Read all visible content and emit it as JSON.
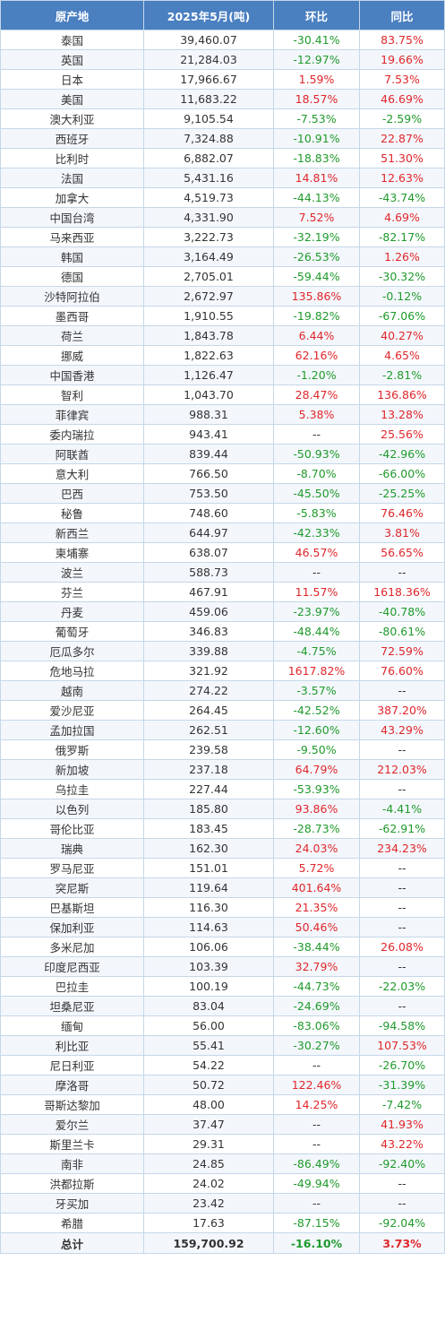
{
  "header": {
    "origin": "原产地",
    "volume": "2025年5月(吨)",
    "mom": "环比",
    "yoy": "同比"
  },
  "colors": {
    "positive": "#e0262a",
    "negative": "#1f9a2b",
    "header_bg": "#4a7fc0"
  },
  "rows": [
    {
      "origin": "泰国",
      "volume": "39,460.07",
      "mom": "-30.41%",
      "yoy": "83.75%"
    },
    {
      "origin": "英国",
      "volume": "21,284.03",
      "mom": "-12.97%",
      "yoy": "19.66%"
    },
    {
      "origin": "日本",
      "volume": "17,966.67",
      "mom": "1.59%",
      "yoy": "7.53%"
    },
    {
      "origin": "美国",
      "volume": "11,683.22",
      "mom": "18.57%",
      "yoy": "46.69%"
    },
    {
      "origin": "澳大利亚",
      "volume": "9,105.54",
      "mom": "-7.53%",
      "yoy": "-2.59%"
    },
    {
      "origin": "西班牙",
      "volume": "7,324.88",
      "mom": "-10.91%",
      "yoy": "22.87%"
    },
    {
      "origin": "比利时",
      "volume": "6,882.07",
      "mom": "-18.83%",
      "yoy": "51.30%"
    },
    {
      "origin": "法国",
      "volume": "5,431.16",
      "mom": "14.81%",
      "yoy": "12.63%"
    },
    {
      "origin": "加拿大",
      "volume": "4,519.73",
      "mom": "-44.13%",
      "yoy": "-43.74%"
    },
    {
      "origin": "中国台湾",
      "volume": "4,331.90",
      "mom": "7.52%",
      "yoy": "4.69%"
    },
    {
      "origin": "马来西亚",
      "volume": "3,222.73",
      "mom": "-32.19%",
      "yoy": "-82.17%"
    },
    {
      "origin": "韩国",
      "volume": "3,164.49",
      "mom": "-26.53%",
      "yoy": "1.26%"
    },
    {
      "origin": "德国",
      "volume": "2,705.01",
      "mom": "-59.44%",
      "yoy": "-30.32%"
    },
    {
      "origin": "沙特阿拉伯",
      "volume": "2,672.97",
      "mom": "135.86%",
      "yoy": "-0.12%"
    },
    {
      "origin": "墨西哥",
      "volume": "1,910.55",
      "mom": "-19.82%",
      "yoy": "-67.06%"
    },
    {
      "origin": "荷兰",
      "volume": "1,843.78",
      "mom": "6.44%",
      "yoy": "40.27%"
    },
    {
      "origin": "挪威",
      "volume": "1,822.63",
      "mom": "62.16%",
      "yoy": "4.65%"
    },
    {
      "origin": "中国香港",
      "volume": "1,126.47",
      "mom": "-1.20%",
      "yoy": "-2.81%"
    },
    {
      "origin": "智利",
      "volume": "1,043.70",
      "mom": "28.47%",
      "yoy": "136.86%"
    },
    {
      "origin": "菲律宾",
      "volume": "988.31",
      "mom": "5.38%",
      "yoy": "13.28%"
    },
    {
      "origin": "委内瑞拉",
      "volume": "943.41",
      "mom": "--",
      "yoy": "25.56%"
    },
    {
      "origin": "阿联酋",
      "volume": "839.44",
      "mom": "-50.93%",
      "yoy": "-42.96%"
    },
    {
      "origin": "意大利",
      "volume": "766.50",
      "mom": "-8.70%",
      "yoy": "-66.00%"
    },
    {
      "origin": "巴西",
      "volume": "753.50",
      "mom": "-45.50%",
      "yoy": "-25.25%"
    },
    {
      "origin": "秘鲁",
      "volume": "748.60",
      "mom": "-5.83%",
      "yoy": "76.46%"
    },
    {
      "origin": "新西兰",
      "volume": "644.97",
      "mom": "-42.33%",
      "yoy": "3.81%"
    },
    {
      "origin": "柬埔寨",
      "volume": "638.07",
      "mom": "46.57%",
      "yoy": "56.65%"
    },
    {
      "origin": "波兰",
      "volume": "588.73",
      "mom": "--",
      "yoy": "--"
    },
    {
      "origin": "芬兰",
      "volume": "467.91",
      "mom": "11.57%",
      "yoy": "1618.36%"
    },
    {
      "origin": "丹麦",
      "volume": "459.06",
      "mom": "-23.97%",
      "yoy": "-40.78%"
    },
    {
      "origin": "葡萄牙",
      "volume": "346.83",
      "mom": "-48.44%",
      "yoy": "-80.61%"
    },
    {
      "origin": "厄瓜多尔",
      "volume": "339.88",
      "mom": "-4.75%",
      "yoy": "72.59%"
    },
    {
      "origin": "危地马拉",
      "volume": "321.92",
      "mom": "1617.82%",
      "yoy": "76.60%"
    },
    {
      "origin": "越南",
      "volume": "274.22",
      "mom": "-3.57%",
      "yoy": "--"
    },
    {
      "origin": "爱沙尼亚",
      "volume": "264.45",
      "mom": "-42.52%",
      "yoy": "387.20%"
    },
    {
      "origin": "孟加拉国",
      "volume": "262.51",
      "mom": "-12.60%",
      "yoy": "43.29%"
    },
    {
      "origin": "俄罗斯",
      "volume": "239.58",
      "mom": "-9.50%",
      "yoy": "--"
    },
    {
      "origin": "新加坡",
      "volume": "237.18",
      "mom": "64.79%",
      "yoy": "212.03%"
    },
    {
      "origin": "乌拉圭",
      "volume": "227.44",
      "mom": "-53.93%",
      "yoy": "--"
    },
    {
      "origin": "以色列",
      "volume": "185.80",
      "mom": "93.86%",
      "yoy": "-4.41%"
    },
    {
      "origin": "哥伦比亚",
      "volume": "183.45",
      "mom": "-28.73%",
      "yoy": "-62.91%"
    },
    {
      "origin": "瑞典",
      "volume": "162.30",
      "mom": "24.03%",
      "yoy": "234.23%"
    },
    {
      "origin": "罗马尼亚",
      "volume": "151.01",
      "mom": "5.72%",
      "yoy": "--"
    },
    {
      "origin": "突尼斯",
      "volume": "119.64",
      "mom": "401.64%",
      "yoy": "--"
    },
    {
      "origin": "巴基斯坦",
      "volume": "116.30",
      "mom": "21.35%",
      "yoy": "--"
    },
    {
      "origin": "保加利亚",
      "volume": "114.63",
      "mom": "50.46%",
      "yoy": "--"
    },
    {
      "origin": "多米尼加",
      "volume": "106.06",
      "mom": "-38.44%",
      "yoy": "26.08%"
    },
    {
      "origin": "印度尼西亚",
      "volume": "103.39",
      "mom": "32.79%",
      "yoy": "--"
    },
    {
      "origin": "巴拉圭",
      "volume": "100.19",
      "mom": "-44.73%",
      "yoy": "-22.03%"
    },
    {
      "origin": "坦桑尼亚",
      "volume": "83.04",
      "mom": "-24.69%",
      "yoy": "--"
    },
    {
      "origin": "缅甸",
      "volume": "56.00",
      "mom": "-83.06%",
      "yoy": "-94.58%"
    },
    {
      "origin": "利比亚",
      "volume": "55.41",
      "mom": "-30.27%",
      "yoy": "107.53%"
    },
    {
      "origin": "尼日利亚",
      "volume": "54.22",
      "mom": "--",
      "yoy": "-26.70%"
    },
    {
      "origin": "摩洛哥",
      "volume": "50.72",
      "mom": "122.46%",
      "yoy": "-31.39%"
    },
    {
      "origin": "哥斯达黎加",
      "volume": "48.00",
      "mom": "14.25%",
      "yoy": "-7.42%"
    },
    {
      "origin": "爱尔兰",
      "volume": "37.47",
      "mom": "--",
      "yoy": "41.93%"
    },
    {
      "origin": "斯里兰卡",
      "volume": "29.31",
      "mom": "--",
      "yoy": "43.22%"
    },
    {
      "origin": "南非",
      "volume": "24.85",
      "mom": "-86.49%",
      "yoy": "-92.40%"
    },
    {
      "origin": "洪都拉斯",
      "volume": "24.02",
      "mom": "-49.94%",
      "yoy": "--"
    },
    {
      "origin": "牙买加",
      "volume": "23.42",
      "mom": "--",
      "yoy": "--"
    },
    {
      "origin": "希腊",
      "volume": "17.63",
      "mom": "-87.15%",
      "yoy": "-92.04%"
    }
  ],
  "total": {
    "origin": "总计",
    "volume": "159,700.92",
    "mom": "-16.10%",
    "yoy": "3.73%"
  }
}
